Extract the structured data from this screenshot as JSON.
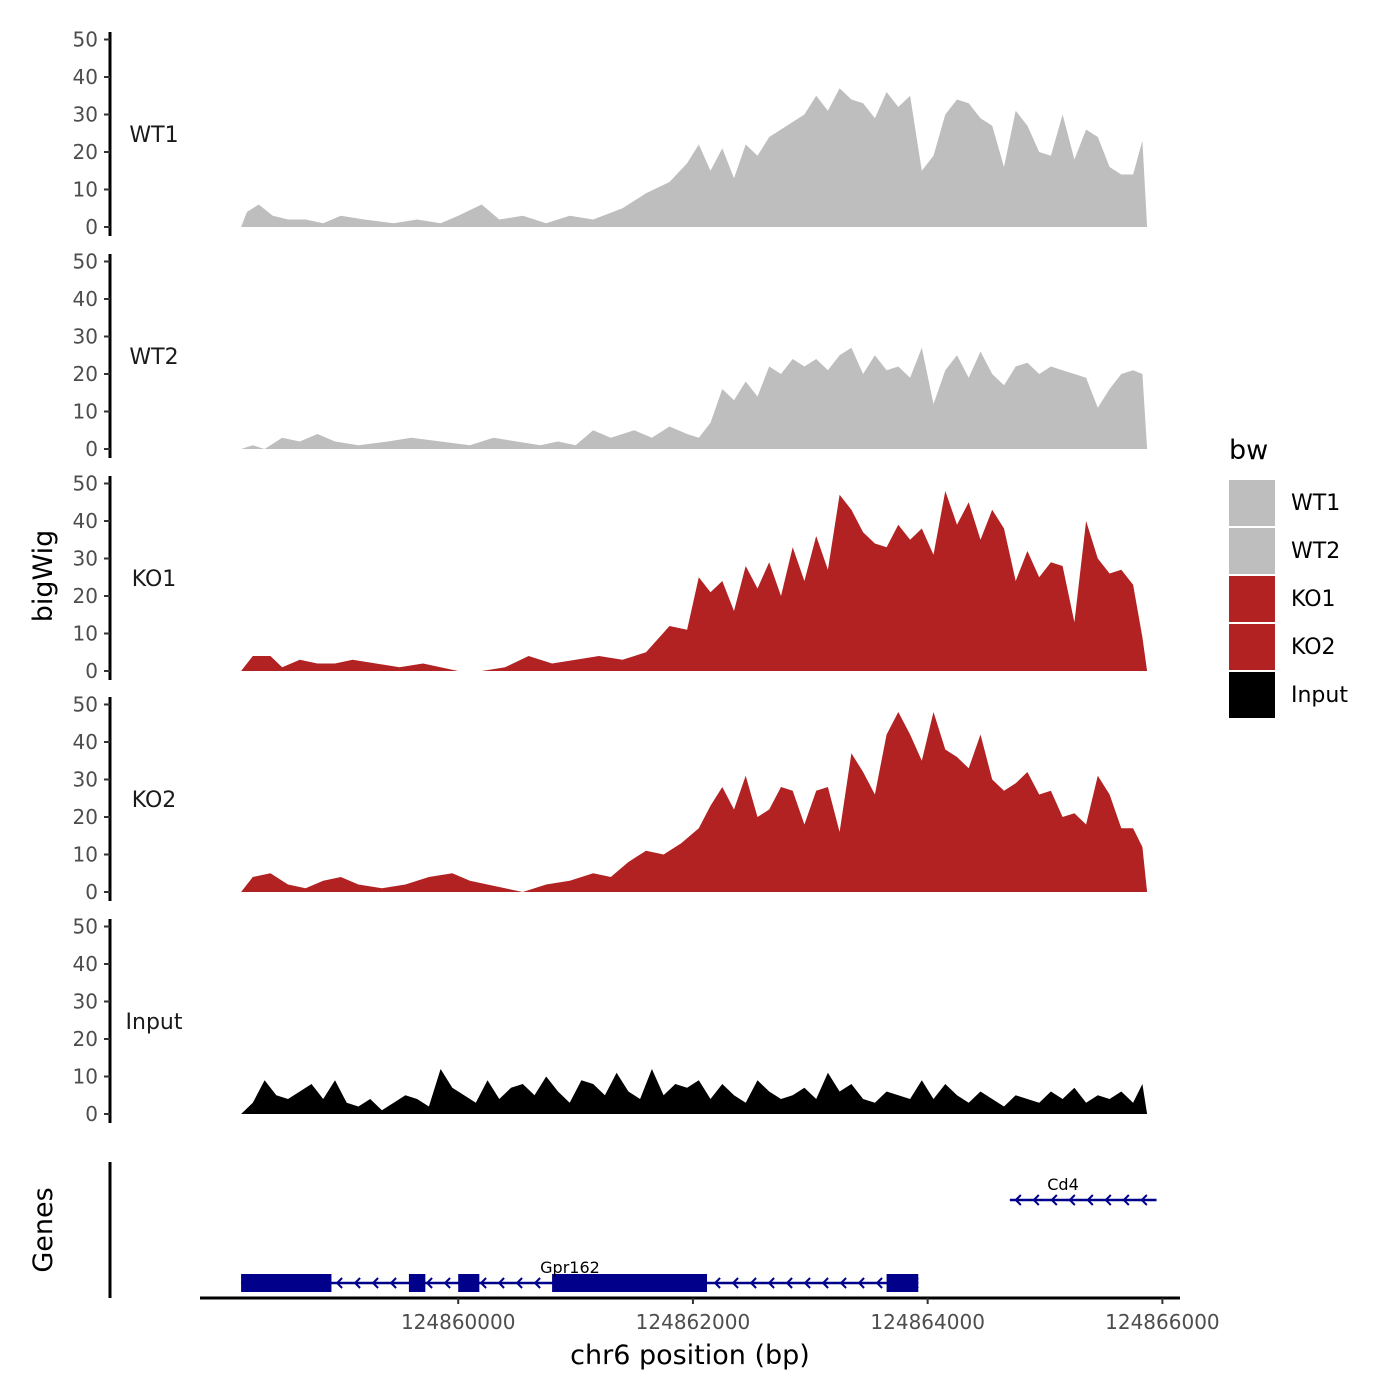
{
  "chart_data": {
    "type": "area",
    "xlabel": "chr6 position (bp)",
    "ylabel": "bigWig",
    "genes_label": "Genes",
    "xlim": [
      124857800,
      124866150
    ],
    "x_ticks": [
      124860000,
      124862000,
      124864000,
      124866000
    ],
    "x_tick_labels": [
      "124860000",
      "124862000",
      "124864000",
      "124866000"
    ],
    "ylim": [
      0,
      52
    ],
    "y_ticks": [
      0,
      10,
      20,
      30,
      40,
      50
    ],
    "y_tick_labels": [
      "0",
      "10",
      "20",
      "30",
      "40",
      "50"
    ],
    "legend": {
      "title": "bw",
      "entries": [
        {
          "label": "WT1",
          "color": "#bebebe"
        },
        {
          "label": "WT2",
          "color": "#bebebe"
        },
        {
          "label": "KO1",
          "color": "#b22222"
        },
        {
          "label": "KO2",
          "color": "#b22222"
        },
        {
          "label": "Input",
          "color": "#000000"
        }
      ]
    },
    "series": [
      {
        "name": "WT1",
        "color": "#bebebe",
        "x": [
          124858150,
          124858200,
          124858300,
          124858420,
          124858550,
          124858700,
          124858850,
          124859000,
          124859200,
          124859450,
          124859650,
          124859850,
          124860000,
          124860200,
          124860350,
          124860550,
          124860750,
          124860950,
          124861150,
          124861400,
          124861600,
          124861800,
          124861950,
          124862050,
          124862150,
          124862250,
          124862350,
          124862450,
          124862550,
          124862650,
          124862750,
          124862850,
          124862950,
          124863050,
          124863150,
          124863250,
          124863350,
          124863450,
          124863550,
          124863650,
          124863750,
          124863850,
          124863950,
          124864050,
          124864150,
          124864250,
          124864350,
          124864450,
          124864550,
          124864650,
          124864750,
          124864850,
          124864950,
          124865050,
          124865150,
          124865250,
          124865350,
          124865450,
          124865550,
          124865650,
          124865750,
          124865830,
          124865870
        ],
        "y": [
          0,
          4,
          6,
          3,
          2,
          2,
          1,
          3,
          2,
          1,
          2,
          1,
          3,
          6,
          2,
          3,
          1,
          3,
          2,
          5,
          9,
          12,
          17,
          22,
          15,
          21,
          13,
          22,
          19,
          24,
          26,
          28,
          30,
          35,
          31,
          37,
          34,
          33,
          29,
          36,
          32,
          35,
          15,
          19,
          30,
          34,
          33,
          29,
          27,
          16,
          31,
          27,
          20,
          19,
          30,
          18,
          26,
          24,
          16,
          14,
          14,
          23,
          0
        ]
      },
      {
        "name": "WT2",
        "color": "#bebebe",
        "x": [
          124858150,
          124858250,
          124858350,
          124858500,
          124858650,
          124858800,
          124858950,
          124859150,
          124859400,
          124859600,
          124859850,
          124860100,
          124860300,
          124860500,
          124860700,
          124860850,
          124861000,
          124861150,
          124861300,
          124861500,
          124861650,
          124861800,
          124861950,
          124862050,
          124862150,
          124862250,
          124862350,
          124862450,
          124862550,
          124862650,
          124862750,
          124862850,
          124862950,
          124863050,
          124863150,
          124863250,
          124863350,
          124863450,
          124863550,
          124863650,
          124863750,
          124863850,
          124863950,
          124864050,
          124864150,
          124864250,
          124864350,
          124864450,
          124864550,
          124864650,
          124864750,
          124864850,
          124864950,
          124865050,
          124865150,
          124865250,
          124865350,
          124865450,
          124865550,
          124865650,
          124865750,
          124865830,
          124865870
        ],
        "y": [
          0,
          1,
          0,
          3,
          2,
          4,
          2,
          1,
          2,
          3,
          2,
          1,
          3,
          2,
          1,
          2,
          1,
          5,
          3,
          5,
          3,
          6,
          4,
          3,
          7,
          16,
          13,
          18,
          14,
          22,
          20,
          24,
          22,
          24,
          21,
          25,
          27,
          20,
          25,
          21,
          22,
          19,
          27,
          12,
          21,
          25,
          19,
          26,
          20,
          17,
          22,
          23,
          20,
          22,
          21,
          20,
          19,
          11,
          16,
          20,
          21,
          20,
          0
        ]
      },
      {
        "name": "KO1",
        "color": "#b22222",
        "x": [
          124858150,
          124858250,
          124858400,
          124858500,
          124858650,
          124858800,
          124858950,
          124859100,
          124859300,
          124859500,
          124859700,
          124859850,
          124860000,
          124860200,
          124860400,
          124860600,
          124860800,
          124861000,
          124861200,
          124861400,
          124861600,
          124861800,
          124861950,
          124862050,
          124862150,
          124862250,
          124862350,
          124862450,
          124862550,
          124862650,
          124862750,
          124862850,
          124862950,
          124863050,
          124863150,
          124863250,
          124863350,
          124863450,
          124863550,
          124863650,
          124863750,
          124863850,
          124863950,
          124864050,
          124864150,
          124864250,
          124864350,
          124864450,
          124864550,
          124864650,
          124864750,
          124864850,
          124864950,
          124865050,
          124865150,
          124865250,
          124865350,
          124865450,
          124865550,
          124865650,
          124865750,
          124865830,
          124865870
        ],
        "y": [
          0,
          4,
          4,
          1,
          3,
          2,
          2,
          3,
          2,
          1,
          2,
          1,
          0,
          0,
          1,
          4,
          2,
          3,
          4,
          3,
          5,
          12,
          11,
          25,
          21,
          24,
          16,
          28,
          22,
          29,
          20,
          33,
          24,
          36,
          27,
          47,
          43,
          37,
          34,
          33,
          39,
          35,
          38,
          31,
          48,
          39,
          45,
          35,
          43,
          38,
          24,
          32,
          25,
          29,
          28,
          13,
          40,
          30,
          26,
          27,
          23,
          9,
          0
        ]
      },
      {
        "name": "KO2",
        "color": "#b22222",
        "x": [
          124858150,
          124858250,
          124858400,
          124858550,
          124858700,
          124858850,
          124859000,
          124859150,
          124859350,
          124859550,
          124859750,
          124859950,
          124860100,
          124860250,
          124860400,
          124860550,
          124860750,
          124860950,
          124861150,
          124861300,
          124861450,
          124861600,
          124861750,
          124861900,
          124862050,
          124862150,
          124862250,
          124862350,
          124862450,
          124862550,
          124862650,
          124862750,
          124862850,
          124862950,
          124863050,
          124863150,
          124863250,
          124863350,
          124863450,
          124863550,
          124863650,
          124863750,
          124863850,
          124863950,
          124864050,
          124864150,
          124864250,
          124864350,
          124864450,
          124864550,
          124864650,
          124864750,
          124864850,
          124864950,
          124865050,
          124865150,
          124865250,
          124865350,
          124865450,
          124865550,
          124865650,
          124865750,
          124865830,
          124865870
        ],
        "y": [
          0,
          4,
          5,
          2,
          1,
          3,
          4,
          2,
          1,
          2,
          4,
          5,
          3,
          2,
          1,
          0,
          2,
          3,
          5,
          4,
          8,
          11,
          10,
          13,
          17,
          23,
          28,
          22,
          31,
          20,
          22,
          28,
          27,
          18,
          27,
          28,
          16,
          37,
          32,
          26,
          42,
          48,
          42,
          35,
          48,
          38,
          36,
          33,
          42,
          30,
          27,
          29,
          32,
          26,
          27,
          20,
          21,
          18,
          31,
          26,
          17,
          17,
          12,
          0
        ]
      },
      {
        "name": "Input",
        "color": "#000000",
        "x": [
          124858150,
          124858250,
          124858350,
          124858450,
          124858550,
          124858650,
          124858750,
          124858850,
          124858950,
          124859050,
          124859150,
          124859250,
          124859350,
          124859450,
          124859550,
          124859650,
          124859750,
          124859850,
          124859950,
          124860050,
          124860150,
          124860250,
          124860350,
          124860450,
          124860550,
          124860650,
          124860750,
          124860850,
          124860950,
          124861050,
          124861150,
          124861250,
          124861350,
          124861450,
          124861550,
          124861650,
          124861750,
          124861850,
          124861950,
          124862050,
          124862150,
          124862250,
          124862350,
          124862450,
          124862550,
          124862650,
          124862750,
          124862850,
          124862950,
          124863050,
          124863150,
          124863250,
          124863350,
          124863450,
          124863550,
          124863650,
          124863750,
          124863850,
          124863950,
          124864050,
          124864150,
          124864250,
          124864350,
          124864450,
          124864550,
          124864650,
          124864750,
          124864850,
          124864950,
          124865050,
          124865150,
          124865250,
          124865350,
          124865450,
          124865550,
          124865650,
          124865750,
          124865830,
          124865870
        ],
        "y": [
          0,
          3,
          9,
          5,
          4,
          6,
          8,
          4,
          9,
          3,
          2,
          4,
          1,
          3,
          5,
          4,
          2,
          12,
          7,
          5,
          3,
          9,
          4,
          7,
          8,
          5,
          10,
          6,
          3,
          9,
          8,
          5,
          11,
          6,
          4,
          12,
          5,
          8,
          7,
          9,
          4,
          8,
          5,
          3,
          9,
          6,
          4,
          5,
          7,
          4,
          11,
          6,
          8,
          4,
          3,
          6,
          5,
          4,
          9,
          4,
          8,
          5,
          3,
          6,
          4,
          2,
          5,
          4,
          3,
          6,
          4,
          7,
          3,
          5,
          4,
          6,
          3,
          8,
          0
        ]
      }
    ],
    "genes": [
      {
        "name": "Gpr162",
        "strand": "-",
        "row": 2,
        "color": "#00008b",
        "start": 124858150,
        "end": 124863920,
        "exons": [
          [
            124858150,
            124858920
          ],
          [
            124859580,
            124859720
          ],
          [
            124860000,
            124860180
          ],
          [
            124860800,
            124862120
          ],
          [
            124863650,
            124863920
          ]
        ]
      },
      {
        "name": "Cd4",
        "strand": "-",
        "row": 1,
        "color": "#00008b",
        "start": 124864700,
        "end": 124865950,
        "exons": []
      }
    ]
  }
}
